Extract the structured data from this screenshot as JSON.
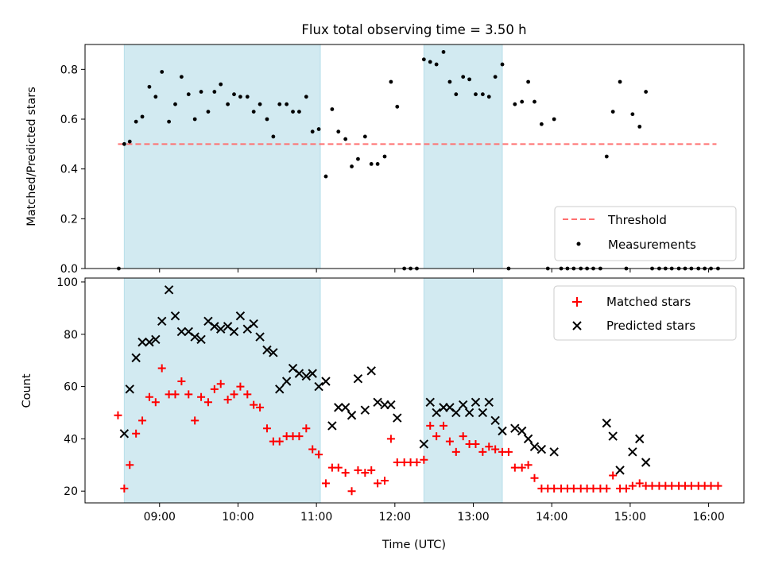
{
  "chart_data": [
    {
      "type": "scatter",
      "title": "Flux total observing time = 3.50 h",
      "xlabel": "",
      "ylabel": "Matched/Predicted stars",
      "ylim": [
        0,
        0.9
      ],
      "yticks": [
        "0.0",
        "0.2",
        "0.4",
        "0.6",
        "0.8"
      ],
      "shaded_regions": [
        [
          8.55,
          11.05
        ],
        [
          12.37,
          13.37
        ]
      ],
      "threshold": {
        "name": "Threshold",
        "value": 0.5,
        "x_range": [
          8.47,
          16.1
        ],
        "color": "#ff7070"
      },
      "series": [
        {
          "name": "Measurements",
          "marker": "dot",
          "color": "#000000",
          "x": [
            8.48,
            8.55,
            8.62,
            8.7,
            8.78,
            8.87,
            8.95,
            9.03,
            9.12,
            9.2,
            9.28,
            9.37,
            9.45,
            9.53,
            9.62,
            9.7,
            9.78,
            9.87,
            9.95,
            10.03,
            10.12,
            10.2,
            10.28,
            10.37,
            10.45,
            10.53,
            10.62,
            10.7,
            10.78,
            10.87,
            10.95,
            11.03,
            11.12,
            11.2,
            11.28,
            11.37,
            11.45,
            11.53,
            11.62,
            11.7,
            11.78,
            11.87,
            11.95,
            12.03,
            12.12,
            12.2,
            12.28,
            12.37,
            12.45,
            12.53,
            12.62,
            12.7,
            12.78,
            12.87,
            12.95,
            13.03,
            13.12,
            13.2,
            13.28,
            13.37,
            13.45,
            13.53,
            13.62,
            13.7,
            13.78,
            13.87,
            13.95,
            14.03,
            14.12,
            14.2,
            14.28,
            14.37,
            14.45,
            14.53,
            14.62,
            14.7,
            14.78,
            14.87,
            14.95,
            15.03,
            15.12,
            15.2,
            15.28,
            15.37,
            15.45,
            15.53,
            15.62,
            15.7,
            15.78,
            15.87,
            15.95,
            16.03,
            16.12
          ],
          "y": [
            0.0,
            0.5,
            0.51,
            0.59,
            0.61,
            0.73,
            0.69,
            0.79,
            0.59,
            0.66,
            0.77,
            0.7,
            0.6,
            0.71,
            0.63,
            0.71,
            0.74,
            0.66,
            0.7,
            0.69,
            0.69,
            0.63,
            0.66,
            0.6,
            0.53,
            0.66,
            0.66,
            0.63,
            0.63,
            0.69,
            0.55,
            0.56,
            0.37,
            0.64,
            0.55,
            0.52,
            0.41,
            0.44,
            0.53,
            0.42,
            0.42,
            0.45,
            0.75,
            0.65,
            0.0,
            0.0,
            0.0,
            0.84,
            0.83,
            0.82,
            0.87,
            0.75,
            0.7,
            0.77,
            0.76,
            0.7,
            0.7,
            0.69,
            0.77,
            0.82,
            0.0,
            0.66,
            0.67,
            0.75,
            0.67,
            0.58,
            0.0,
            0.6,
            0.0,
            0.0,
            0.0,
            0.0,
            0.0,
            0.0,
            0.0,
            0.45,
            0.63,
            0.75,
            0.0,
            0.62,
            0.57,
            0.71,
            0.0,
            0.0,
            0.0,
            0.0,
            0.0,
            0.0,
            0.0,
            0.0,
            0.0,
            0.0,
            0.0
          ]
        }
      ],
      "legend": {
        "position": "bottom-right",
        "entries": [
          "Threshold",
          "Measurements"
        ]
      }
    },
    {
      "type": "scatter",
      "xlabel": "Time (UTC)",
      "ylabel": "Count",
      "xlim": [
        8.05,
        16.45
      ],
      "ylim": [
        15.5,
        101.5
      ],
      "xticks": [
        "09:00",
        "10:00",
        "11:00",
        "12:00",
        "13:00",
        "14:00",
        "15:00",
        "16:00"
      ],
      "xtick_values": [
        9,
        10,
        11,
        12,
        13,
        14,
        15,
        16
      ],
      "yticks": [
        "20",
        "40",
        "60",
        "80",
        "100"
      ],
      "shaded_regions": [
        [
          8.55,
          11.05
        ],
        [
          12.37,
          13.37
        ]
      ],
      "series": [
        {
          "name": "Matched stars",
          "marker": "plus",
          "color": "#ff0000",
          "x": [
            8.47,
            8.55,
            8.62,
            8.7,
            8.78,
            8.87,
            8.95,
            9.03,
            9.12,
            9.2,
            9.28,
            9.37,
            9.45,
            9.53,
            9.62,
            9.7,
            9.78,
            9.87,
            9.95,
            10.03,
            10.12,
            10.2,
            10.28,
            10.37,
            10.45,
            10.53,
            10.62,
            10.7,
            10.78,
            10.87,
            10.95,
            11.03,
            11.12,
            11.2,
            11.28,
            11.37,
            11.45,
            11.53,
            11.62,
            11.7,
            11.78,
            11.87,
            11.95,
            12.03,
            12.12,
            12.2,
            12.28,
            12.37,
            12.45,
            12.53,
            12.62,
            12.7,
            12.78,
            12.87,
            12.95,
            13.03,
            13.12,
            13.2,
            13.28,
            13.37,
            13.45,
            13.53,
            13.62,
            13.7,
            13.78,
            13.87,
            13.95,
            14.03,
            14.12,
            14.2,
            14.28,
            14.37,
            14.45,
            14.53,
            14.62,
            14.7,
            14.78,
            14.87,
            14.95,
            15.03,
            15.12,
            15.2,
            15.28,
            15.37,
            15.45,
            15.53,
            15.62,
            15.7,
            15.78,
            15.87,
            15.95,
            16.03,
            16.12
          ],
          "y": [
            49,
            21,
            30,
            42,
            47,
            56,
            54,
            67,
            57,
            57,
            62,
            57,
            47,
            56,
            54,
            59,
            61,
            55,
            57,
            60,
            57,
            53,
            52,
            44,
            39,
            39,
            41,
            41,
            41,
            44,
            36,
            34,
            23,
            29,
            29,
            27,
            20,
            28,
            27,
            28,
            23,
            24,
            40,
            31,
            31,
            31,
            31,
            32,
            45,
            41,
            45,
            39,
            35,
            41,
            38,
            38,
            35,
            37,
            36,
            35,
            35,
            29,
            29,
            30,
            25,
            21,
            21,
            21,
            21,
            21,
            21,
            21,
            21,
            21,
            21,
            21,
            26,
            21,
            21,
            22,
            23,
            22,
            22,
            22,
            22,
            22,
            22,
            22,
            22,
            22,
            22,
            22,
            22
          ]
        },
        {
          "name": "Predicted stars",
          "marker": "x",
          "color": "#000000",
          "x": [
            8.55,
            8.62,
            8.7,
            8.78,
            8.87,
            8.95,
            9.03,
            9.12,
            9.2,
            9.28,
            9.37,
            9.45,
            9.53,
            9.62,
            9.7,
            9.78,
            9.87,
            9.95,
            10.03,
            10.12,
            10.2,
            10.28,
            10.37,
            10.45,
            10.53,
            10.62,
            10.7,
            10.78,
            10.87,
            10.95,
            11.03,
            11.12,
            11.2,
            11.28,
            11.37,
            11.45,
            11.53,
            11.62,
            11.7,
            11.78,
            11.87,
            11.95,
            12.03,
            12.37,
            12.45,
            12.53,
            12.62,
            12.7,
            12.78,
            12.87,
            12.95,
            13.03,
            13.12,
            13.2,
            13.28,
            13.37,
            13.53,
            13.62,
            13.7,
            13.78,
            13.87,
            14.03,
            14.7,
            14.78,
            14.87,
            15.03,
            15.12,
            15.2
          ],
          "y": [
            42,
            59,
            71,
            77,
            77,
            78,
            85,
            97,
            87,
            81,
            81,
            79,
            78,
            85,
            83,
            82,
            83,
            81,
            87,
            82,
            84,
            79,
            74,
            73,
            59,
            62,
            67,
            65,
            64,
            65,
            60,
            62,
            45,
            52,
            52,
            49,
            63,
            51,
            66,
            54,
            53,
            53,
            48,
            38,
            54,
            50,
            52,
            52,
            50,
            53,
            50,
            54,
            50,
            54,
            47,
            43,
            44,
            43,
            40,
            37,
            36,
            35,
            46,
            41,
            28,
            35,
            40,
            31
          ]
        }
      ],
      "legend": {
        "position": "top-right",
        "entries": [
          "Matched stars",
          "Predicted stars"
        ]
      }
    }
  ]
}
